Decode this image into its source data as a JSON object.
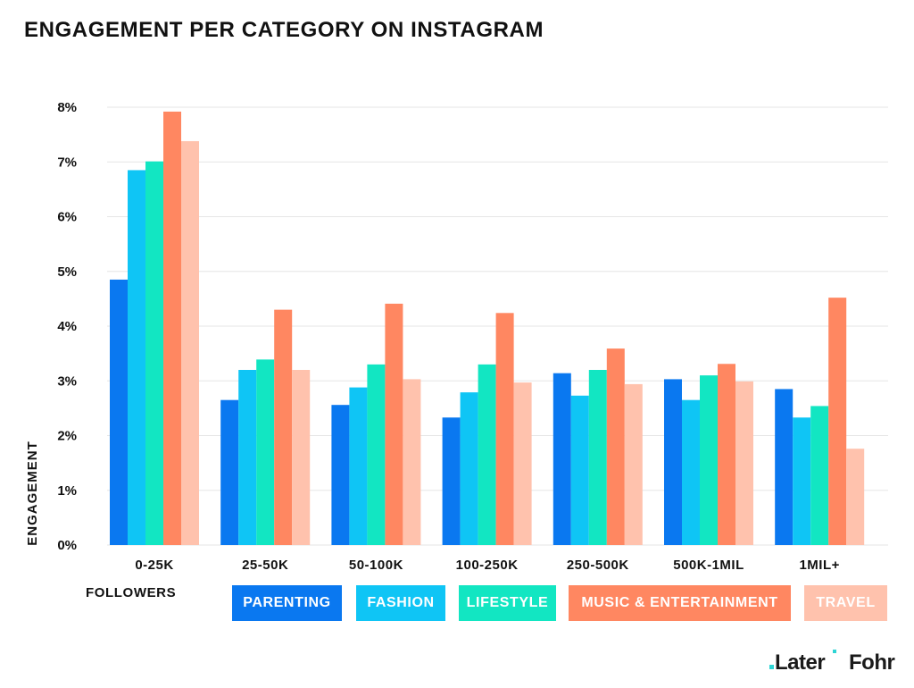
{
  "title": "ENGAGEMENT PER CATEGORY ON INSTAGRAM",
  "logos": {
    "later": "Later",
    "fohr": "Fohr"
  },
  "colors": {
    "parenting": "#0a78f0",
    "fashion": "#0fc5f5",
    "lifestyle": "#12e6c2",
    "music": "#ff8761",
    "travel": "#ffc2ad",
    "grid": "#e6e6e6",
    "logo_accent": "#2dd4d4"
  },
  "chart_data": {
    "type": "bar",
    "title": "ENGAGEMENT PER CATEGORY ON INSTAGRAM",
    "xlabel": "FOLLOWERS",
    "ylabel": "ENGAGEMENT",
    "ylim": [
      0,
      8
    ],
    "y_ticks": [
      "0%",
      "1%",
      "2%",
      "3%",
      "4%",
      "5%",
      "6%",
      "7%",
      "8%"
    ],
    "grid": true,
    "legend_position": "bottom",
    "categories": [
      "0-25K",
      "25-50K",
      "50-100K",
      "100-250K",
      "250-500K",
      "500K-1MIL",
      "1MIL+"
    ],
    "series": [
      {
        "name": "PARENTING",
        "color": "#0a78f0",
        "values": [
          4.85,
          2.65,
          2.56,
          2.33,
          3.14,
          3.03,
          2.85
        ]
      },
      {
        "name": "FASHION",
        "color": "#0fc5f5",
        "values": [
          6.85,
          3.2,
          2.88,
          2.79,
          2.73,
          2.65,
          2.33
        ]
      },
      {
        "name": "LIFESTYLE",
        "color": "#12e6c2",
        "values": [
          7.01,
          3.39,
          3.3,
          3.3,
          3.2,
          3.1,
          2.54
        ]
      },
      {
        "name": "MUSIC & ENTERTAINMENT",
        "color": "#ff8761",
        "values": [
          7.92,
          4.3,
          4.41,
          4.24,
          3.59,
          3.31,
          4.52
        ]
      },
      {
        "name": "TRAVEL",
        "color": "#ffc2ad",
        "values": [
          7.38,
          3.2,
          3.03,
          2.97,
          2.94,
          2.99,
          1.76
        ]
      }
    ]
  }
}
